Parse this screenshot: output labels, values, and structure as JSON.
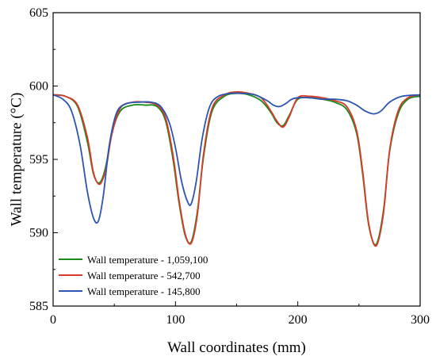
{
  "chart_data": {
    "type": "line",
    "xlabel": "Wall coordinates (mm)",
    "ylabel": "Wall temperature (°C)",
    "xlim": [
      0,
      300
    ],
    "ylim": [
      585,
      605
    ],
    "x_ticks": [
      0,
      100,
      200,
      300
    ],
    "y_ticks": [
      585,
      590,
      595,
      600,
      605
    ],
    "x_tick_labels": [
      "0",
      "100",
      "200",
      "300"
    ],
    "y_tick_labels": [
      "585",
      "590",
      "595",
      "600",
      "605"
    ],
    "grid": false,
    "legend_position": "bottom-left",
    "series": [
      {
        "name": "Wall temperature - 1,059,100",
        "color": "#1a8a1a",
        "x": [
          0,
          10,
          20,
          28,
          33,
          38,
          43,
          48,
          55,
          65,
          75,
          85,
          92,
          98,
          103,
          108,
          113,
          118,
          123,
          130,
          140,
          150,
          160,
          170,
          178,
          183,
          188,
          193,
          200,
          210,
          220,
          230,
          240,
          248,
          253,
          258,
          264,
          270,
          275,
          282,
          290,
          300
        ],
        "y": [
          599.4,
          599.3,
          598.6,
          596.2,
          594.0,
          593.4,
          594.5,
          596.8,
          598.3,
          598.7,
          598.7,
          598.6,
          597.6,
          595.0,
          592.0,
          589.8,
          589.4,
          591.5,
          595.2,
          598.3,
          599.3,
          599.5,
          599.4,
          599.0,
          598.2,
          597.5,
          597.3,
          598.0,
          599.1,
          599.2,
          599.1,
          598.9,
          598.4,
          596.8,
          594.0,
          590.5,
          589.2,
          591.5,
          595.5,
          598.1,
          599.1,
          599.3
        ]
      },
      {
        "name": "Wall temperature - 542,700",
        "color": "#d93a2a",
        "x": [
          0,
          10,
          20,
          28,
          33,
          38,
          43,
          48,
          55,
          65,
          75,
          85,
          92,
          98,
          103,
          108,
          113,
          118,
          123,
          130,
          140,
          150,
          160,
          170,
          178,
          183,
          188,
          193,
          200,
          210,
          220,
          230,
          240,
          248,
          253,
          258,
          264,
          270,
          275,
          282,
          290,
          300
        ],
        "y": [
          599.4,
          599.3,
          598.7,
          596.5,
          594.1,
          593.3,
          594.3,
          596.7,
          598.5,
          598.9,
          598.9,
          598.7,
          597.8,
          595.3,
          592.2,
          589.9,
          589.3,
          591.3,
          595.4,
          598.5,
          599.4,
          599.6,
          599.5,
          599.2,
          598.3,
          597.6,
          597.2,
          597.9,
          599.2,
          599.3,
          599.2,
          599.0,
          598.6,
          597.0,
          594.2,
          590.6,
          589.1,
          591.3,
          595.6,
          598.3,
          599.2,
          599.4
        ]
      },
      {
        "name": "Wall temperature - 145,800",
        "color": "#2a55b0",
        "x": [
          0,
          8,
          15,
          22,
          28,
          33,
          37,
          41,
          46,
          52,
          60,
          70,
          80,
          88,
          95,
          100,
          105,
          110,
          113,
          117,
          122,
          128,
          135,
          145,
          155,
          165,
          175,
          180,
          185,
          190,
          195,
          200,
          210,
          220,
          230,
          240,
          248,
          255,
          262,
          268,
          275,
          285,
          300
        ],
        "y": [
          599.4,
          599.1,
          598.3,
          596.0,
          592.8,
          591.0,
          590.8,
          592.5,
          596.0,
          598.2,
          598.8,
          598.9,
          598.9,
          598.6,
          597.5,
          595.8,
          593.5,
          592.1,
          592.0,
          593.5,
          596.5,
          598.6,
          599.3,
          599.5,
          599.5,
          599.4,
          599.0,
          598.7,
          598.6,
          598.8,
          599.1,
          599.2,
          599.2,
          599.1,
          599.1,
          599.0,
          598.7,
          598.3,
          598.1,
          598.3,
          598.9,
          599.3,
          599.4
        ]
      }
    ]
  }
}
